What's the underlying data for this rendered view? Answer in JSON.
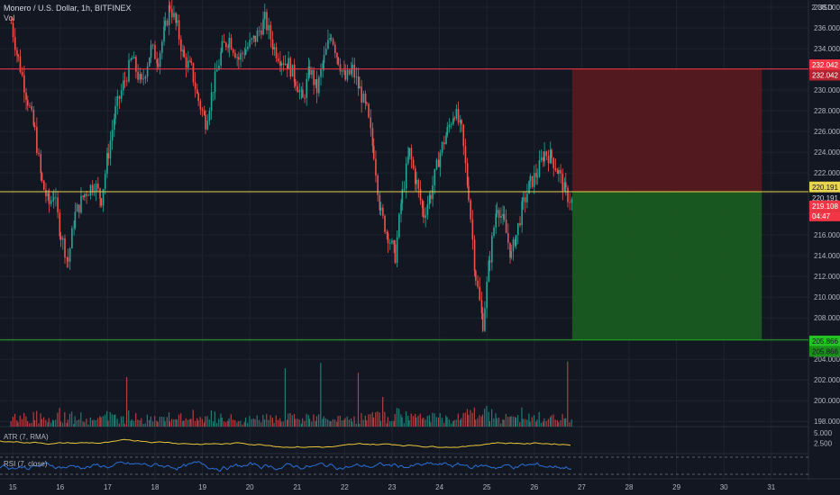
{
  "header": {
    "symbol_line": "Monero / U.S. Dollar, 1h, BITFINEX",
    "volume_label": "Vol",
    "currency": "USD",
    "currency_prefix": "2"
  },
  "indicators": {
    "atr_label": "ATR (7, RMA)",
    "rsi_label": "RSI (7, close)"
  },
  "chart_data": {
    "type": "candlestick",
    "title": "Monero / U.S. Dollar, 1h, BITFINEX",
    "x_tick_labels": [
      "15",
      "16",
      "17",
      "18",
      "19",
      "20",
      "21",
      "22",
      "23",
      "24",
      "25",
      "26",
      "27",
      "28",
      "29",
      "30",
      "31"
    ],
    "y_range": [
      197.5,
      238.7
    ],
    "y_ticks": [
      198,
      200,
      202,
      204,
      206,
      208,
      210,
      212,
      214,
      216,
      218,
      220,
      222,
      224,
      226,
      228,
      230,
      232,
      234,
      236,
      238
    ],
    "y_tick_labels": [
      "198.000",
      "200.000",
      "202.000",
      "204.000",
      "206.000",
      "208.000",
      "210.000",
      "212.000",
      "214.000",
      "216.000",
      "218.000",
      "220.000",
      "222.000",
      "224.000",
      "226.000",
      "228.000",
      "230.000",
      "232.000",
      "234.000",
      "236.000",
      "238.000"
    ],
    "price_levels": [
      {
        "name": "stop-loss",
        "value": 232.042,
        "label": "232.042",
        "color": "#f23645"
      },
      {
        "name": "entry",
        "value": 220.191,
        "label": "220.191",
        "color": "#e8d44d"
      },
      {
        "name": "take-profit",
        "value": 205.866,
        "label": "205.866",
        "color": "#22ab22"
      }
    ],
    "last_price": {
      "value": 219.108,
      "label": "219.108",
      "countdown": "04:47",
      "color": "#f23645"
    },
    "position": {
      "type": "long",
      "entry": 220.191,
      "stop": 232.042,
      "target": 205.866,
      "from_day": 26.8,
      "to_day": 30.8
    },
    "price_path": [
      [
        14.95,
        236.5
      ],
      [
        15.1,
        233
      ],
      [
        15.3,
        229
      ],
      [
        15.45,
        226
      ],
      [
        15.6,
        221
      ],
      [
        15.75,
        219
      ],
      [
        15.85,
        220
      ],
      [
        16.0,
        216
      ],
      [
        16.15,
        213.5
      ],
      [
        16.3,
        218
      ],
      [
        16.5,
        220
      ],
      [
        16.7,
        221
      ],
      [
        16.85,
        219.5
      ],
      [
        17.0,
        224
      ],
      [
        17.15,
        228
      ],
      [
        17.35,
        231
      ],
      [
        17.5,
        233
      ],
      [
        17.7,
        230.5
      ],
      [
        17.9,
        234
      ],
      [
        18.05,
        233
      ],
      [
        18.2,
        236
      ],
      [
        18.3,
        238.2
      ],
      [
        18.45,
        236
      ],
      [
        18.6,
        233
      ],
      [
        18.75,
        232
      ],
      [
        18.9,
        229
      ],
      [
        19.05,
        227
      ],
      [
        19.25,
        231
      ],
      [
        19.4,
        234
      ],
      [
        19.55,
        235
      ],
      [
        19.75,
        233
      ],
      [
        19.9,
        234
      ],
      [
        20.1,
        235
      ],
      [
        20.3,
        236.8
      ],
      [
        20.5,
        234
      ],
      [
        20.65,
        233
      ],
      [
        20.8,
        232.5
      ],
      [
        20.95,
        231
      ],
      [
        21.1,
        229
      ],
      [
        21.25,
        232
      ],
      [
        21.4,
        230
      ],
      [
        21.55,
        233
      ],
      [
        21.7,
        235.5
      ],
      [
        21.85,
        233
      ],
      [
        22.0,
        231
      ],
      [
        22.15,
        232
      ],
      [
        22.3,
        230
      ],
      [
        22.45,
        228
      ],
      [
        22.6,
        224
      ],
      [
        22.75,
        218
      ],
      [
        22.9,
        216
      ],
      [
        23.05,
        214
      ],
      [
        23.2,
        220
      ],
      [
        23.35,
        224
      ],
      [
        23.5,
        221
      ],
      [
        23.65,
        218
      ],
      [
        23.8,
        220
      ],
      [
        24.0,
        224
      ],
      [
        24.15,
        226
      ],
      [
        24.3,
        228
      ],
      [
        24.45,
        226
      ],
      [
        24.6,
        220
      ],
      [
        24.75,
        212
      ],
      [
        24.9,
        207.5
      ],
      [
        25.05,
        214
      ],
      [
        25.2,
        219
      ],
      [
        25.35,
        217
      ],
      [
        25.5,
        214
      ],
      [
        25.6,
        216
      ],
      [
        25.75,
        219
      ],
      [
        25.9,
        221
      ],
      [
        26.05,
        222
      ],
      [
        26.2,
        224
      ],
      [
        26.35,
        223.5
      ],
      [
        26.5,
        222
      ],
      [
        26.65,
        220
      ],
      [
        26.8,
        219.1
      ]
    ],
    "volume_axis_ticks": [],
    "atr_axis_ticks": [
      "5.000",
      "2.500"
    ],
    "series": [
      {
        "name": "Vol"
      },
      {
        "name": "ATR (7, RMA)",
        "color": "#e8c53a"
      },
      {
        "name": "RSI (7, close)",
        "color": "#2a6fd6"
      }
    ]
  },
  "colors": {
    "background": "#131722",
    "grid": "#1f2330",
    "up": "#26a69a",
    "down": "#ef5350",
    "axis_text": "#b2b5be",
    "profit_zone": "#1b5e20",
    "loss_zone": "#5a1a1f"
  }
}
